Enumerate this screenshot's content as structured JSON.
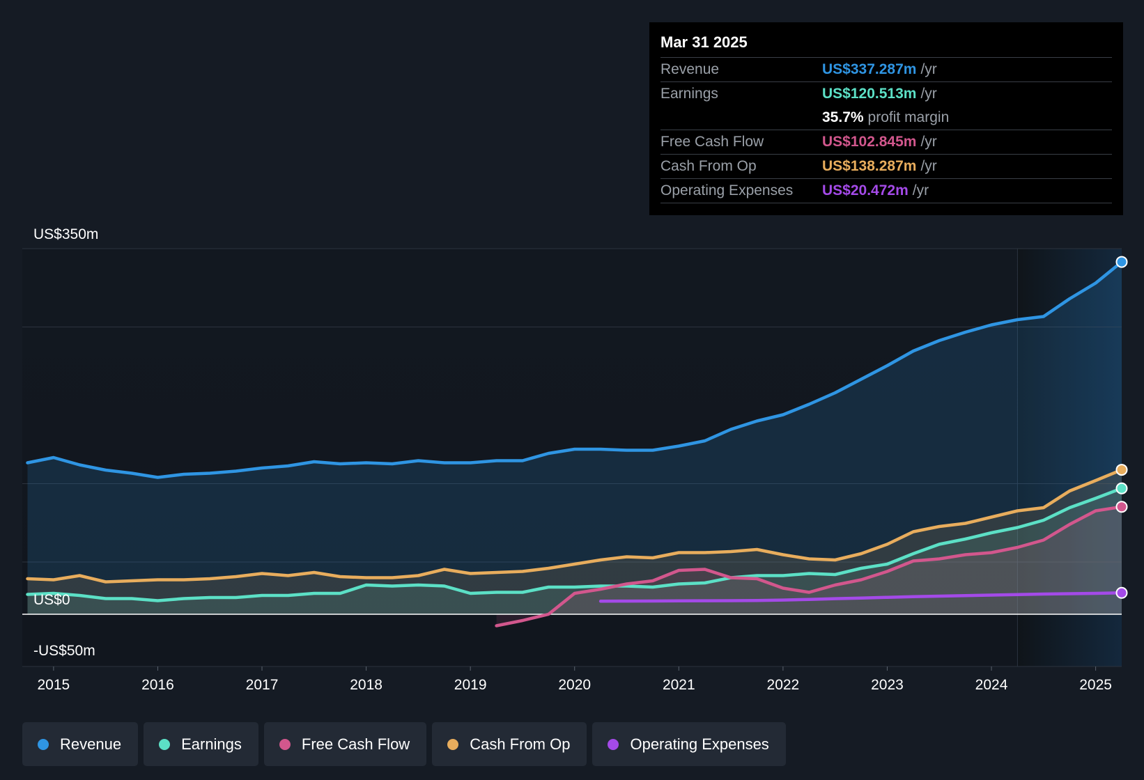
{
  "chart_data": {
    "type": "line",
    "ylim": [
      -50,
      350
    ],
    "y_tick_labels": [
      {
        "value": 350,
        "label": "US$350m"
      },
      {
        "value": 0,
        "label": "US$0"
      },
      {
        "value": -50,
        "label": "-US$50m"
      }
    ],
    "x_ticks": [
      2015,
      2016,
      2017,
      2018,
      2019,
      2020,
      2021,
      2022,
      2023,
      2024,
      2025
    ],
    "xlim": [
      2014.7,
      2025.25
    ],
    "forecast_band_start": 2024.25,
    "grid": true,
    "series": [
      {
        "name": "Revenue",
        "color": "#2f95e3",
        "fill": true,
        "end_marker": true,
        "x": [
          2014.75,
          2015.0,
          2015.25,
          2015.5,
          2015.75,
          2016.0,
          2016.25,
          2016.5,
          2016.75,
          2017.0,
          2017.25,
          2017.5,
          2017.75,
          2018.0,
          2018.25,
          2018.5,
          2018.75,
          2019.0,
          2019.25,
          2019.5,
          2019.75,
          2020.0,
          2020.25,
          2020.5,
          2020.75,
          2021.0,
          2021.25,
          2021.5,
          2021.75,
          2022.0,
          2022.25,
          2022.5,
          2022.75,
          2023.0,
          2023.25,
          2023.5,
          2023.75,
          2024.0,
          2024.25,
          2024.5,
          2024.75,
          2025.0,
          2025.25
        ],
        "y": [
          145,
          150,
          143,
          138,
          135,
          131,
          134,
          135,
          137,
          140,
          142,
          146,
          144,
          145,
          144,
          147,
          145,
          145,
          147,
          147,
          154,
          158,
          158,
          157,
          157,
          161,
          166,
          177,
          185,
          191,
          201,
          212,
          225,
          238,
          252,
          262,
          270,
          277,
          282,
          285,
          302,
          317,
          337.287
        ]
      },
      {
        "name": "Earnings",
        "color": "#5ce0c6",
        "fill": true,
        "end_marker": true,
        "x": [
          2014.75,
          2015.0,
          2015.25,
          2015.5,
          2015.75,
          2016.0,
          2016.25,
          2016.5,
          2016.75,
          2017.0,
          2017.25,
          2017.5,
          2017.75,
          2018.0,
          2018.25,
          2018.5,
          2018.75,
          2019.0,
          2019.25,
          2019.5,
          2019.75,
          2020.0,
          2020.25,
          2020.5,
          2020.75,
          2021.0,
          2021.25,
          2021.5,
          2021.75,
          2022.0,
          2022.25,
          2022.5,
          2022.75,
          2023.0,
          2023.25,
          2023.5,
          2023.75,
          2024.0,
          2024.25,
          2024.5,
          2024.75,
          2025.0,
          2025.25
        ],
        "y": [
          19,
          20,
          18,
          15,
          15,
          13,
          15,
          16,
          16,
          18,
          18,
          20,
          20,
          28,
          27,
          28,
          27,
          20,
          21,
          21,
          26,
          26,
          27,
          27,
          26,
          29,
          30,
          35,
          37,
          37,
          39,
          38,
          44,
          48,
          58,
          67,
          72,
          78,
          83,
          90,
          102,
          111,
          120.513
        ]
      },
      {
        "name": "Free Cash Flow",
        "color": "#d2578d",
        "fill": true,
        "end_marker": true,
        "x": [
          2019.25,
          2019.5,
          2019.75,
          2020.0,
          2020.25,
          2020.5,
          2020.75,
          2021.0,
          2021.25,
          2021.5,
          2021.75,
          2022.0,
          2022.25,
          2022.5,
          2022.75,
          2023.0,
          2023.25,
          2023.5,
          2023.75,
          2024.0,
          2024.25,
          2024.5,
          2024.75,
          2025.0,
          2025.25
        ],
        "y": [
          -11,
          -6,
          0,
          20,
          24,
          29,
          32,
          42,
          43,
          35,
          34,
          25,
          21,
          28,
          33,
          41,
          51,
          53,
          57,
          59,
          64,
          71,
          86,
          99,
          102.845
        ]
      },
      {
        "name": "Cash From Op",
        "color": "#e8ad5d",
        "fill": true,
        "end_marker": true,
        "x": [
          2014.75,
          2015.0,
          2015.25,
          2015.5,
          2015.75,
          2016.0,
          2016.25,
          2016.5,
          2016.75,
          2017.0,
          2017.25,
          2017.5,
          2017.75,
          2018.0,
          2018.25,
          2018.5,
          2018.75,
          2019.0,
          2019.25,
          2019.5,
          2019.75,
          2020.0,
          2020.25,
          2020.5,
          2020.75,
          2021.0,
          2021.25,
          2021.5,
          2021.75,
          2022.0,
          2022.25,
          2022.5,
          2022.75,
          2023.0,
          2023.25,
          2023.5,
          2023.75,
          2024.0,
          2024.25,
          2024.5,
          2024.75,
          2025.0,
          2025.25
        ],
        "y": [
          34,
          33,
          37,
          31,
          32,
          33,
          33,
          34,
          36,
          39,
          37,
          40,
          36,
          35,
          35,
          37,
          43,
          39,
          40,
          41,
          44,
          48,
          52,
          55,
          54,
          59,
          59,
          60,
          62,
          57,
          53,
          52,
          58,
          67,
          79,
          84,
          87,
          93,
          99,
          102,
          118,
          128,
          138.287
        ]
      },
      {
        "name": "Operating Expenses",
        "color": "#a44ae8",
        "fill": false,
        "end_marker": true,
        "x": [
          2020.25,
          2020.5,
          2020.75,
          2021.0,
          2021.25,
          2021.5,
          2021.75,
          2022.0,
          2022.25,
          2022.5,
          2022.75,
          2023.0,
          2023.25,
          2023.5,
          2023.75,
          2024.0,
          2024.25,
          2024.5,
          2024.75,
          2025.0,
          2025.25
        ],
        "y": [
          12.5,
          12.6,
          12.7,
          12.8,
          12.9,
          13.0,
          13.2,
          13.6,
          14.2,
          14.9,
          15.5,
          16.2,
          16.8,
          17.3,
          17.8,
          18.3,
          18.8,
          19.3,
          19.7,
          20.0,
          20.472
        ]
      }
    ]
  },
  "tooltip": {
    "date": "Mar 31 2025",
    "revenue_label": "Revenue",
    "revenue_value": "US$337.287m",
    "revenue_unit": "/yr",
    "earnings_label": "Earnings",
    "earnings_value": "US$120.513m",
    "earnings_unit": "/yr",
    "margin_value": "35.7%",
    "margin_label": "profit margin",
    "fcf_label": "Free Cash Flow",
    "fcf_value": "US$102.845m",
    "fcf_unit": "/yr",
    "cfo_label": "Cash From Op",
    "cfo_value": "US$138.287m",
    "cfo_unit": "/yr",
    "opex_label": "Operating Expenses",
    "opex_value": "US$20.472m",
    "opex_unit": "/yr"
  },
  "legend": {
    "revenue": "Revenue",
    "earnings": "Earnings",
    "fcf": "Free Cash Flow",
    "cfo": "Cash From Op",
    "opex": "Operating Expenses"
  },
  "colors": {
    "revenue": "#2f95e3",
    "earnings": "#5ce0c6",
    "fcf": "#d2578d",
    "cfo": "#e8ad5d",
    "opex": "#a44ae8"
  }
}
